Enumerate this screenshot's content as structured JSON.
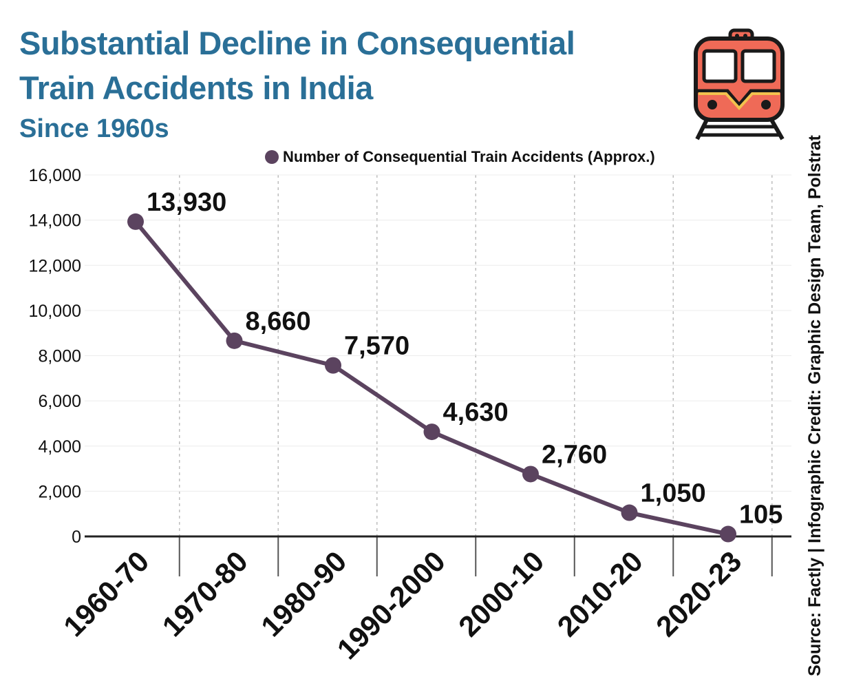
{
  "header": {
    "title_line1": "Substantial Decline in Consequential",
    "title_line2": "Train Accidents in India",
    "subtitle": "Since 1960s"
  },
  "credit": "Source: Factly | Infographic Credit: Graphic Design Team, Polstrat",
  "icon": {
    "name": "train-icon",
    "color": "#ef6a57"
  },
  "colors": {
    "title": "#2a6f97",
    "series": "#5b435f",
    "axis": "#222222",
    "grid": "#bdbdbd"
  },
  "chart_data": {
    "type": "line",
    "legend": {
      "label": "Number of Consequential Train Accidents (Approx.)",
      "position": "top-right"
    },
    "categories": [
      "1960-70",
      "1970-80",
      "1980-90",
      "1990-2000",
      "2000-10",
      "2010-20",
      "2020-23"
    ],
    "series": [
      {
        "name": "Number of Consequential Train Accidents (Approx.)",
        "values": [
          13930,
          8660,
          7570,
          4630,
          2760,
          1050,
          105
        ],
        "labels": [
          "13,930",
          "8,660",
          "7,570",
          "4,630",
          "2,760",
          "1,050",
          "105"
        ]
      }
    ],
    "yticks": [
      0,
      2000,
      4000,
      6000,
      8000,
      10000,
      12000,
      14000,
      16000
    ],
    "ytick_labels": [
      "0",
      "2,000",
      "4,000",
      "6,000",
      "8,000",
      "10,000",
      "12,000",
      "14,000",
      "16,000"
    ],
    "ylim": [
      0,
      16000
    ],
    "grid": {
      "horizontal": true,
      "vertical": "dashed"
    },
    "xlabel": "",
    "ylabel": ""
  }
}
